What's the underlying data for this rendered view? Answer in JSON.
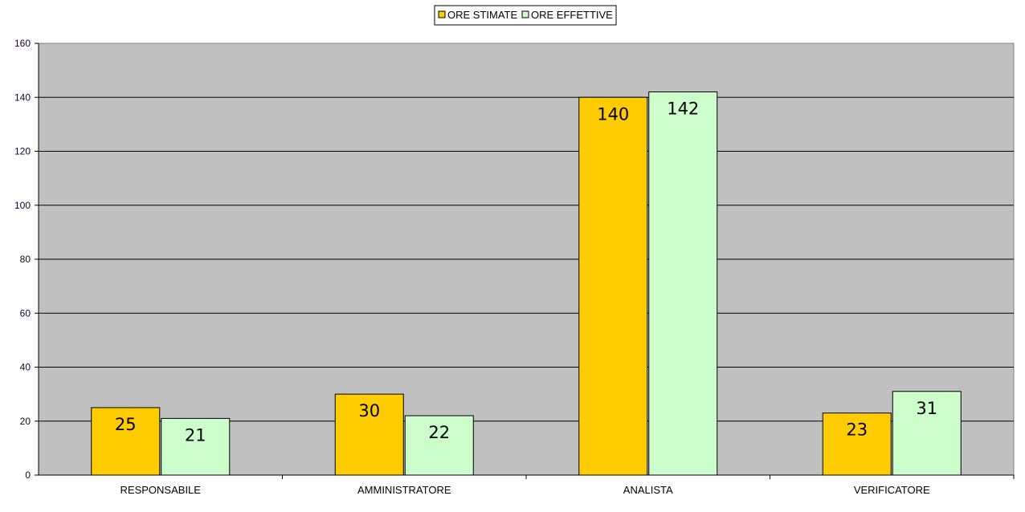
{
  "chart_data": {
    "type": "bar",
    "categories": [
      "RESPONSABILE",
      "AMMINISTRATORE",
      "ANALISTA",
      "VERIFICATORE"
    ],
    "series": [
      {
        "name": "ORE STIMATE",
        "values": [
          25,
          30,
          140,
          23
        ],
        "color": "#ffcc00"
      },
      {
        "name": "ORE EFFETTIVE",
        "values": [
          21,
          22,
          142,
          31
        ],
        "color": "#ccffcc"
      }
    ],
    "yticks": [
      "0",
      "20",
      "40",
      "60",
      "80",
      "100",
      "120",
      "140",
      "160"
    ],
    "ylim": [
      0,
      160
    ],
    "grid": true,
    "legend_position": "top-center",
    "plot_background": "#c0c0c0"
  }
}
